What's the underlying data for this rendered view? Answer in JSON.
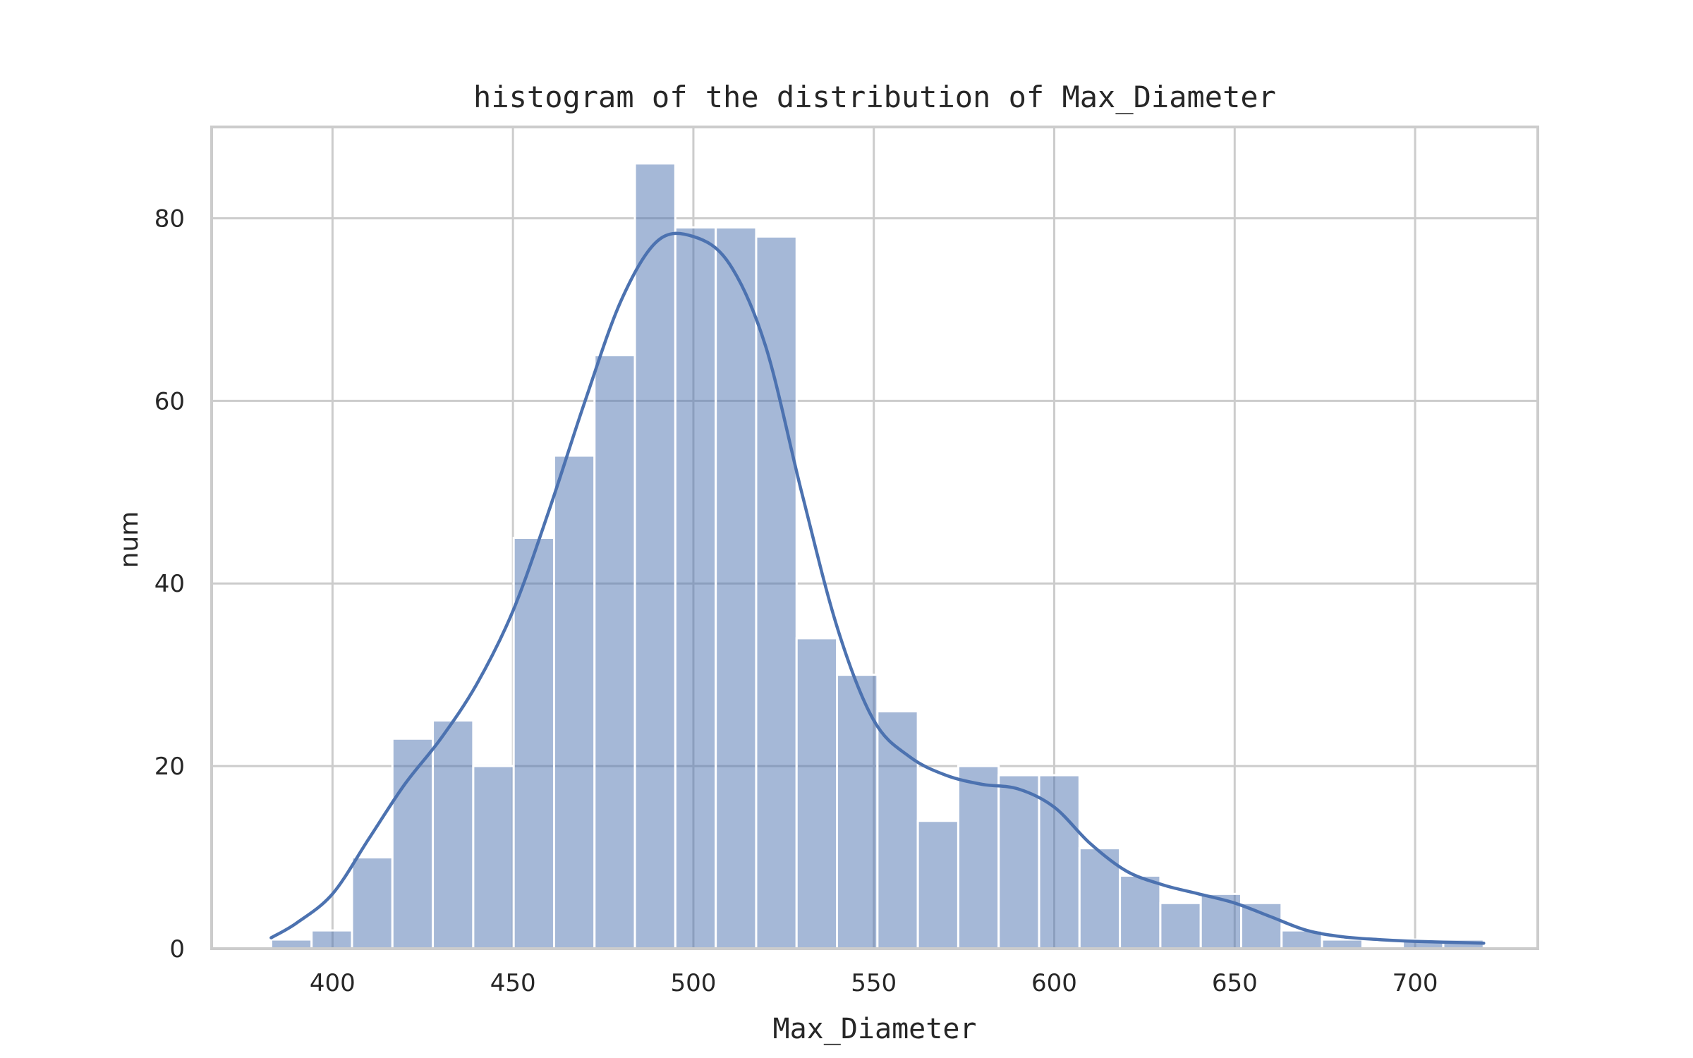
{
  "chart_data": {
    "type": "bar",
    "subtype": "histogram",
    "title": "histogram of the distribution of Max_Diameter",
    "xlabel": "Max_Diameter",
    "ylabel": "num",
    "xlim": [
      366.5,
      734
    ],
    "ylim": [
      0,
      90
    ],
    "xticks": [
      400,
      450,
      500,
      550,
      600,
      650,
      700
    ],
    "yticks": [
      0,
      20,
      40,
      60,
      80
    ],
    "grid": true,
    "bin_range": [
      383,
      719
    ],
    "bin_width": 11.2,
    "counts": [
      1,
      2,
      10,
      23,
      25,
      20,
      45,
      54,
      65,
      86,
      79,
      79,
      78,
      34,
      30,
      26,
      14,
      20,
      19,
      19,
      11,
      8,
      5,
      6,
      5,
      2,
      1,
      0,
      1,
      1
    ],
    "kde": {
      "x": [
        383,
        390,
        400,
        410,
        420,
        430,
        440,
        450,
        460,
        470,
        480,
        490,
        500,
        510,
        520,
        530,
        540,
        550,
        560,
        570,
        580,
        590,
        600,
        610,
        620,
        630,
        640,
        650,
        660,
        670,
        680,
        690,
        700,
        719
      ],
      "y": [
        1.2,
        2.8,
        6,
        12,
        18,
        23,
        29,
        37,
        48,
        60,
        71,
        77.5,
        78,
        75,
        66,
        50,
        35,
        25,
        21,
        19,
        18,
        17.5,
        15.5,
        11.5,
        8.5,
        7,
        6,
        5,
        3.5,
        2,
        1.3,
        1,
        0.8,
        0.6
      ]
    },
    "colors": {
      "bar": "#4c72b0",
      "line": "#4c72b0",
      "grid": "#cccccc",
      "text": "#262626"
    }
  }
}
